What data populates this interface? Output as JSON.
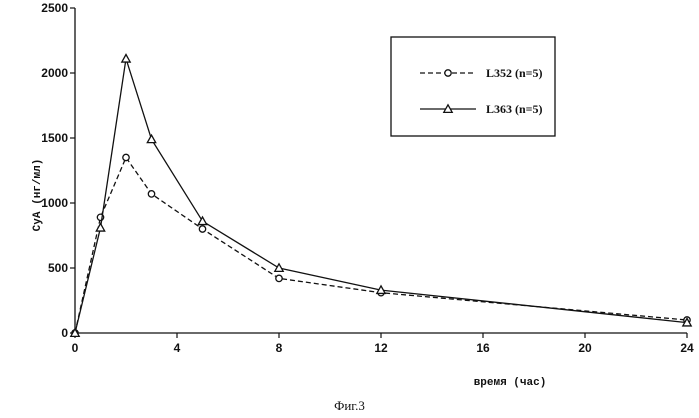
{
  "chart_data": {
    "type": "line",
    "x": [
      0,
      1,
      2,
      3,
      5,
      8,
      12,
      24
    ],
    "series": [
      {
        "name": "L352 (n=5)",
        "values": [
          0,
          890,
          1350,
          1070,
          800,
          420,
          310,
          100
        ],
        "style": "dashed",
        "marker": "circle"
      },
      {
        "name": "L363 (n=5)",
        "values": [
          0,
          810,
          2110,
          1490,
          860,
          500,
          330,
          80
        ],
        "style": "solid",
        "marker": "triangle"
      }
    ],
    "ylabel": "CyA (нг/мл)",
    "xlabel": "время (час)",
    "xlim": [
      0,
      24
    ],
    "ylim": [
      0,
      2500
    ],
    "xticks": [
      "0",
      "4",
      "8",
      "12",
      "16",
      "20",
      "24"
    ],
    "yticks": [
      "0",
      "500",
      "1000",
      "1500",
      "2000",
      "2500"
    ],
    "legend_position": "top-right",
    "grid": false
  },
  "caption": "Фиг.3",
  "colors": {
    "ink": "#111111",
    "background": "#ffffff"
  }
}
